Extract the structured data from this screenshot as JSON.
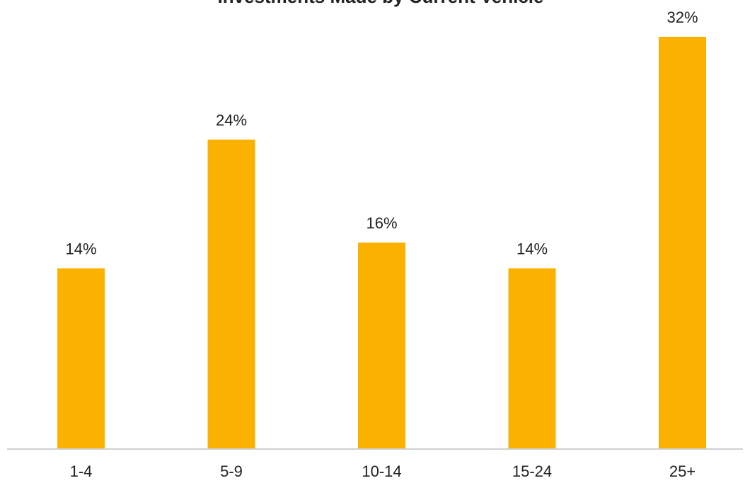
{
  "chart_data": {
    "type": "bar",
    "title": "Investments Made by Current Vehicle",
    "categories": [
      "1-4",
      "5-9",
      "10-14",
      "15-24",
      "25+"
    ],
    "values": [
      14,
      24,
      16,
      14,
      32
    ],
    "data_labels": [
      "14%",
      "24%",
      "16%",
      "14%",
      "32%"
    ],
    "xlabel": "",
    "ylabel": "",
    "ylim": [
      0,
      35
    ],
    "grid": false,
    "legend": "none",
    "colors": {
      "bar": "#FBB100",
      "text": "#222222",
      "title": "#222222",
      "axis": "#D0D0D0"
    }
  }
}
